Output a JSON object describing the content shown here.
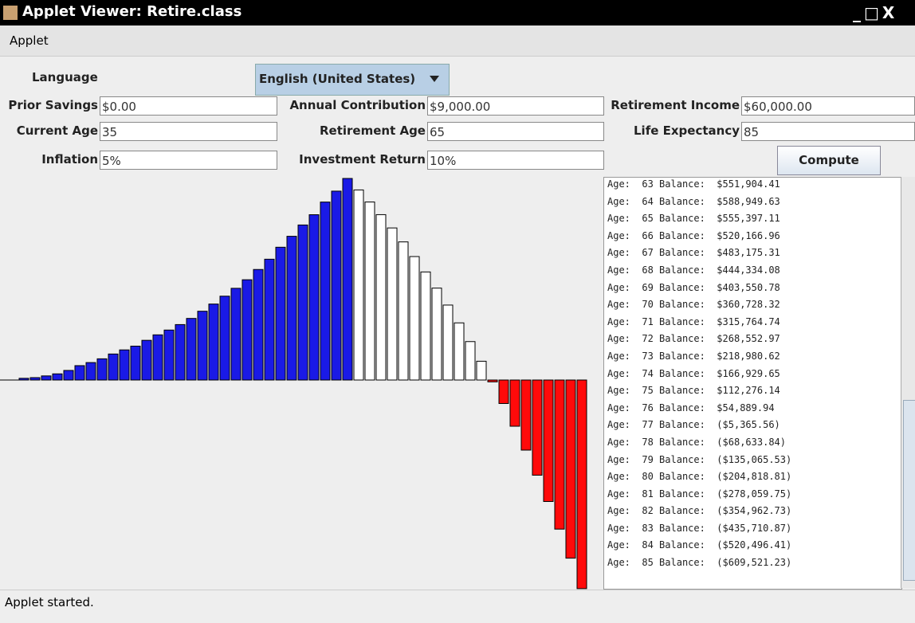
{
  "window": {
    "title": "Applet Viewer: Retire.class",
    "menu": "Applet",
    "status": "Applet started."
  },
  "language": {
    "label": "Language",
    "value": "English (United States)"
  },
  "form": {
    "rows": [
      [
        {
          "label": "Prior Savings",
          "value": "$0.00"
        },
        {
          "label": "Annual Contribution",
          "value": "$9,000.00"
        },
        {
          "label": "Retirement Income",
          "value": "$60,000.00"
        }
      ],
      [
        {
          "label": "Current Age",
          "value": "35"
        },
        {
          "label": "Retirement Age",
          "value": "65"
        },
        {
          "label": "Life Expectancy",
          "value": "85"
        }
      ],
      [
        {
          "label": "Inflation",
          "value": "5%"
        },
        {
          "label": "Investment Return",
          "value": "10%"
        }
      ]
    ],
    "button": "Compute"
  },
  "list": {
    "age_prefix": "Age:",
    "balance_prefix": "Balance:",
    "rows": [
      {
        "age": 63,
        "balance": "$551,904.41"
      },
      {
        "age": 64,
        "balance": "$588,949.63"
      },
      {
        "age": 65,
        "balance": "$555,397.11"
      },
      {
        "age": 66,
        "balance": "$520,166.96"
      },
      {
        "age": 67,
        "balance": "$483,175.31"
      },
      {
        "age": 68,
        "balance": "$444,334.08"
      },
      {
        "age": 69,
        "balance": "$403,550.78"
      },
      {
        "age": 70,
        "balance": "$360,728.32"
      },
      {
        "age": 71,
        "balance": "$315,764.74"
      },
      {
        "age": 72,
        "balance": "$268,552.97"
      },
      {
        "age": 73,
        "balance": "$218,980.62"
      },
      {
        "age": 74,
        "balance": "$166,929.65"
      },
      {
        "age": 75,
        "balance": "$112,276.14"
      },
      {
        "age": 76,
        "balance": "$54,889.94"
      },
      {
        "age": 77,
        "balance": "($5,365.56)"
      },
      {
        "age": 78,
        "balance": "($68,633.84)"
      },
      {
        "age": 79,
        "balance": "($135,065.53)"
      },
      {
        "age": 80,
        "balance": "($204,818.81)"
      },
      {
        "age": 81,
        "balance": "($278,059.75)"
      },
      {
        "age": 82,
        "balance": "($354,962.73)"
      },
      {
        "age": 83,
        "balance": "($435,710.87)"
      },
      {
        "age": 84,
        "balance": "($520,496.41)"
      },
      {
        "age": 85,
        "balance": "($609,521.23)"
      }
    ]
  },
  "chart_data": {
    "type": "bar",
    "series": [
      {
        "color": "#1a1ae6",
        "values": [
          5000,
          7000,
          12000,
          18000,
          28000,
          42000,
          51000,
          62000,
          76000,
          88000,
          99000,
          116000,
          132000,
          146000,
          162000,
          180000,
          201000,
          222000,
          245000,
          268000,
          293000,
          323000,
          353000,
          388000,
          420000,
          453000,
          483000,
          520000,
          551904.41,
          588949.63
        ]
      },
      {
        "color": "#ffffff",
        "values": [
          555397.11,
          520166.96,
          483175.31,
          444334.08,
          403550.78,
          360728.32,
          315764.74,
          268552.97,
          218980.62,
          166929.65,
          112276.14,
          54889.94
        ]
      },
      {
        "color": "#ff0a0a",
        "values": [
          -5365.56,
          -68633.84,
          -135065.53,
          -204818.81,
          -278059.75,
          -354962.73,
          -435710.87,
          -520496.41,
          -609521.23
        ]
      }
    ]
  }
}
